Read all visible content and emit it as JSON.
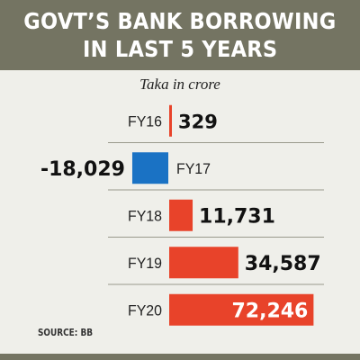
{
  "header": {
    "title_line1": "GOVT’S BANK BORROWING",
    "title_line2": "IN LAST 5 YEARS"
  },
  "source": "SOURCE: BB",
  "colors": {
    "positive": "#e8432a",
    "negative": "#1a72c4",
    "header": "#747462",
    "background": "#efefea"
  },
  "chart_data": {
    "type": "bar",
    "orientation": "horizontal",
    "title": "GOVT’S BANK BORROWING IN LAST 5 YEARS",
    "unit_label": "Taka in crore",
    "categories": [
      "FY16",
      "FY17",
      "FY18",
      "FY19",
      "FY20"
    ],
    "values": [
      329,
      -18029,
      11731,
      34587,
      72246
    ],
    "value_labels": [
      "329",
      "-18,029",
      "11,731",
      "34,587",
      "72,246"
    ],
    "grid": false,
    "legend": "none"
  }
}
